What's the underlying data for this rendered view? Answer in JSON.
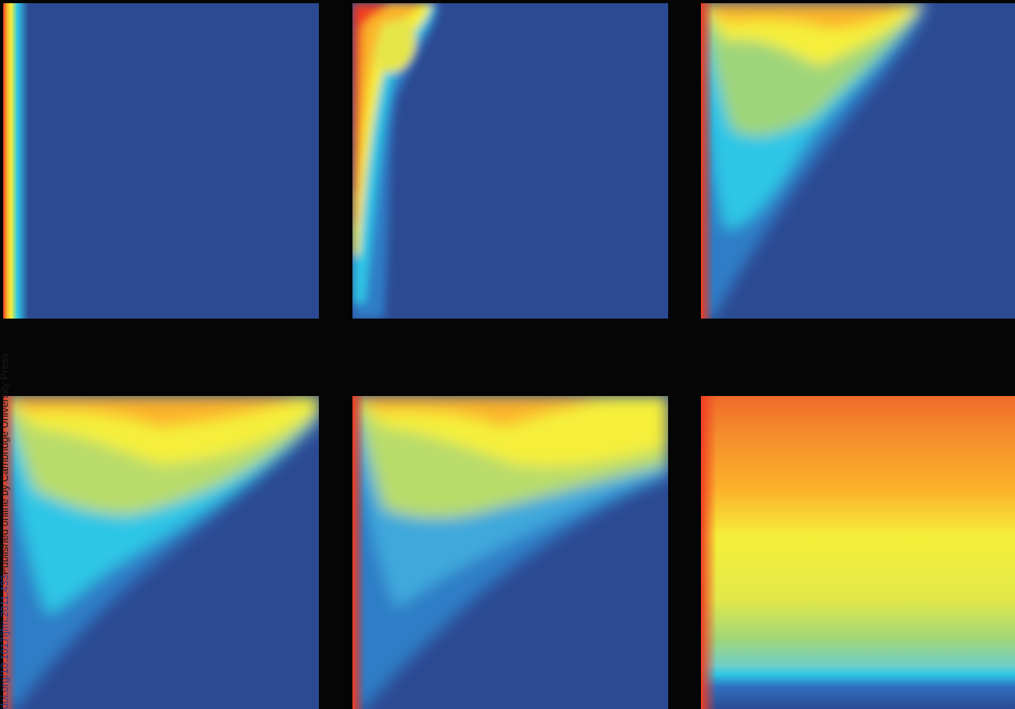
{
  "figure": {
    "colormap": [
      "#2c4a93",
      "#2ec6e6",
      "#f5ef3a",
      "#fbb22a",
      "#ef3e23"
    ],
    "panels": [
      {
        "id": "p1",
        "title": ""
      },
      {
        "id": "p2",
        "title": ""
      },
      {
        "id": "p3",
        "title": ""
      },
      {
        "id": "p4",
        "title": ""
      },
      {
        "id": "p5",
        "title": ""
      },
      {
        "id": "p6",
        "title": ""
      }
    ]
  },
  "watermark": {
    "doi_text": "doi.org/10.1017/jfm.2011.433",
    "tail_text": " Published online by Cambridge University Press"
  }
}
